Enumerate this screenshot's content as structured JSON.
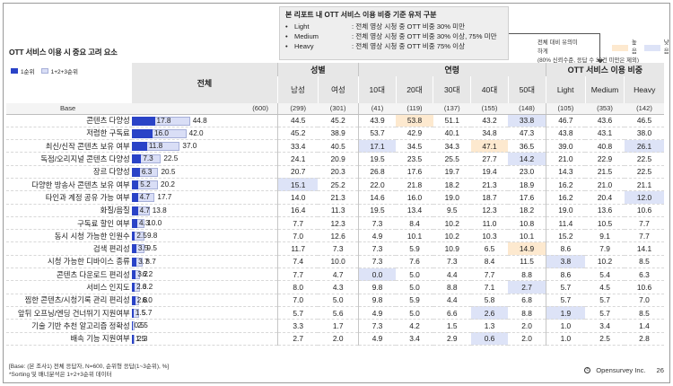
{
  "legend": {
    "title": "본 리포트 내 OTT 서비스 이용 비중 기준 유저 구분",
    "rows": [
      {
        "name": "Light",
        "desc": ": 전체 영상 시청 중 OTT 비중 30% 미만"
      },
      {
        "name": "Medium",
        "desc": ": 전체 영상 시청 중 OTT 비중 30% 이상, 75% 미만"
      },
      {
        "name": "Heavy",
        "desc": ": 전체 영상 시청 중 OTT 비중 75% 이상"
      }
    ]
  },
  "report_title": "OTT 서비스 이용 시 중요 고려 요소",
  "sig_legend": {
    "label": "전체 대비 유의미하게",
    "high": "높음",
    "low": "낮음",
    "note": "(80% 신뢰수준, 응답 수 30건 미만은 제외)"
  },
  "bar_legend": {
    "rank1": "1순위",
    "rank123": "1+2+3순위"
  },
  "table": {
    "total_header": "전체",
    "groups": [
      "성별",
      "연령",
      "OTT 서비스 이용 비중"
    ],
    "columns": [
      "남성",
      "여성",
      "10대",
      "20대",
      "30대",
      "40대",
      "50대",
      "Light",
      "Medium",
      "Heavy"
    ],
    "base_label": "Base",
    "base_total": "(600)",
    "base_values": [
      "(299)",
      "(301)",
      "(41)",
      "(119)",
      "(137)",
      "(155)",
      "(148)",
      "(105)",
      "(353)",
      "(142)"
    ],
    "rows": [
      {
        "label": "콘텐츠 다양성",
        "rank1": 17.8,
        "rank123": 44.8,
        "rank1_text": "17.8",
        "rank123_text": "44.8",
        "values": [
          "44.5",
          "45.2",
          "43.9",
          "53.8",
          "51.1",
          "43.2",
          "33.8",
          "46.7",
          "43.6",
          "46.5"
        ],
        "sig": [
          "",
          "",
          "",
          "h",
          "",
          "",
          "l",
          "",
          "",
          ""
        ]
      },
      {
        "label": "저렴한 구독료",
        "rank1": 16.0,
        "rank123": 42.0,
        "rank1_text": "16.0",
        "rank123_text": "42.0",
        "values": [
          "45.2",
          "38.9",
          "53.7",
          "42.9",
          "40.1",
          "34.8",
          "47.3",
          "43.8",
          "43.1",
          "38.0"
        ],
        "sig": [
          "",
          "",
          "",
          "",
          "",
          "",
          "",
          "",
          "",
          ""
        ]
      },
      {
        "label": "최신/신작 콘텐츠 보유 여부",
        "rank1": 11.8,
        "rank123": 37.0,
        "rank1_text": "11.8",
        "rank123_text": "37.0",
        "values": [
          "33.4",
          "40.5",
          "17.1",
          "34.5",
          "34.3",
          "47.1",
          "36.5",
          "39.0",
          "40.8",
          "26.1"
        ],
        "sig": [
          "",
          "",
          "l",
          "",
          "",
          "h",
          "",
          "",
          "",
          "l"
        ]
      },
      {
        "label": "독점/오리지널 콘텐츠 다양성",
        "rank1": 7.3,
        "rank123": 22.5,
        "rank1_text": "7.3",
        "rank123_text": "22.5",
        "values": [
          "24.1",
          "20.9",
          "19.5",
          "23.5",
          "25.5",
          "27.7",
          "14.2",
          "21.0",
          "22.9",
          "22.5"
        ],
        "sig": [
          "",
          "",
          "",
          "",
          "",
          "",
          "l",
          "",
          "",
          ""
        ]
      },
      {
        "label": "장르 다양성",
        "rank1": 6.3,
        "rank123": 20.5,
        "rank1_text": "6.3",
        "rank123_text": "20.5",
        "values": [
          "20.7",
          "20.3",
          "26.8",
          "17.6",
          "19.7",
          "19.4",
          "23.0",
          "14.3",
          "21.5",
          "22.5"
        ],
        "sig": [
          "",
          "",
          "",
          "",
          "",
          "",
          "",
          "",
          "",
          ""
        ]
      },
      {
        "label": "다양한 방송사 콘텐츠 보유 여부",
        "rank1": 5.2,
        "rank123": 20.2,
        "rank1_text": "5.2",
        "rank123_text": "20.2",
        "values": [
          "15.1",
          "25.2",
          "22.0",
          "21.8",
          "18.2",
          "21.3",
          "18.9",
          "16.2",
          "21.0",
          "21.1"
        ],
        "sig": [
          "l",
          "",
          "",
          "",
          "",
          "",
          "",
          "",
          "",
          ""
        ]
      },
      {
        "label": "타인과 계정 공유 가능 여부",
        "rank1": 4.7,
        "rank123": 17.7,
        "rank1_text": "4.7",
        "rank123_text": "17.7",
        "values": [
          "14.0",
          "21.3",
          "14.6",
          "16.0",
          "19.0",
          "18.7",
          "17.6",
          "16.2",
          "20.4",
          "12.0"
        ],
        "sig": [
          "",
          "",
          "",
          "",
          "",
          "",
          "",
          "",
          "",
          "l"
        ]
      },
      {
        "label": "화질/음질",
        "rank1": 4.7,
        "rank123": 13.8,
        "rank1_text": "4.7",
        "rank123_text": "13.8",
        "values": [
          "16.4",
          "11.3",
          "19.5",
          "13.4",
          "9.5",
          "12.3",
          "18.2",
          "19.0",
          "13.6",
          "10.6"
        ],
        "sig": [
          "",
          "",
          "",
          "",
          "",
          "",
          "",
          "",
          "",
          ""
        ]
      },
      {
        "label": "구독료 할인 여부",
        "rank1": 4.3,
        "rank123": 10.0,
        "rank1_text": "4.3",
        "rank123_text": "10.0",
        "values": [
          "7.7",
          "12.3",
          "7.3",
          "8.4",
          "10.2",
          "11.0",
          "10.8",
          "11.4",
          "10.5",
          "7.7"
        ],
        "sig": [
          "",
          "",
          "",
          "",
          "",
          "",
          "",
          "",
          "",
          ""
        ]
      },
      {
        "label": "동시 시청 가능한 인원수",
        "rank1": 2.5,
        "rank123": 9.8,
        "rank1_text": "2.5",
        "rank123_text": "9.8",
        "values": [
          "7.0",
          "12.6",
          "4.9",
          "10.1",
          "10.2",
          "10.3",
          "10.1",
          "15.2",
          "9.1",
          "7.7"
        ],
        "sig": [
          "",
          "",
          "",
          "",
          "",
          "",
          "",
          "",
          "",
          ""
        ]
      },
      {
        "label": "검색 편리성",
        "rank1": 3.5,
        "rank123": 9.5,
        "rank1_text": "3.5",
        "rank123_text": "9.5",
        "values": [
          "11.7",
          "7.3",
          "7.3",
          "5.9",
          "10.9",
          "6.5",
          "14.9",
          "8.6",
          "7.9",
          "14.1"
        ],
        "sig": [
          "",
          "",
          "",
          "",
          "",
          "",
          "h",
          "",
          "",
          ""
        ]
      },
      {
        "label": "시청 가능한 디바이스 종류",
        "rank1": 3.7,
        "rank123": 8.7,
        "rank1_text": "3.7",
        "rank123_text": "8.7",
        "values": [
          "7.4",
          "10.0",
          "7.3",
          "7.6",
          "7.3",
          "8.4",
          "11.5",
          "3.8",
          "10.2",
          "8.5"
        ],
        "sig": [
          "",
          "",
          "",
          "",
          "",
          "",
          "",
          "l",
          "",
          ""
        ]
      },
      {
        "label": "콘텐츠 다운로드 편리성",
        "rank1": 3.2,
        "rank123": 6.2,
        "rank1_text": "3.2",
        "rank123_text": "6.2",
        "values": [
          "7.7",
          "4.7",
          "0.0",
          "5.0",
          "4.4",
          "7.7",
          "8.8",
          "8.6",
          "5.4",
          "6.3"
        ],
        "sig": [
          "",
          "",
          "l",
          "",
          "",
          "",
          "",
          "",
          "",
          ""
        ]
      },
      {
        "label": "서비스 인지도",
        "rank1": 2.3,
        "rank123": 6.2,
        "rank1_text": "2.3",
        "rank123_text": "6.2",
        "values": [
          "8.0",
          "4.3",
          "9.8",
          "5.0",
          "8.8",
          "7.1",
          "2.7",
          "5.7",
          "4.5",
          "10.6"
        ],
        "sig": [
          "",
          "",
          "",
          "",
          "",
          "",
          "l",
          "",
          "",
          ""
        ]
      },
      {
        "label": "찜한 콘텐츠/시청기록 관리 편리성",
        "rank1": 2.8,
        "rank123": 6.0,
        "rank1_text": "2.8",
        "rank123_text": "6.0",
        "values": [
          "7.0",
          "5.0",
          "9.8",
          "5.9",
          "4.4",
          "5.8",
          "6.8",
          "5.7",
          "5.7",
          "7.0"
        ],
        "sig": [
          "",
          "",
          "",
          "",
          "",
          "",
          "",
          "",
          "",
          ""
        ]
      },
      {
        "label": "앞뒤 오프닝/엔딩 건너뛰기 지원여부",
        "rank1": 1.5,
        "rank123": 5.7,
        "rank1_text": "1.5",
        "rank123_text": "5.7",
        "values": [
          "5.7",
          "5.6",
          "4.9",
          "5.0",
          "6.6",
          "2.6",
          "8.8",
          "1.9",
          "5.7",
          "8.5"
        ],
        "sig": [
          "",
          "",
          "",
          "",
          "",
          "l",
          "",
          "l",
          "",
          ""
        ]
      },
      {
        "label": "기술 기반 추천 알고리즘 정확성",
        "rank1": 0.5,
        "rank123": 2.5,
        "rank1_text": "0.5",
        "rank123_text": "2.5",
        "values": [
          "3.3",
          "1.7",
          "7.3",
          "4.2",
          "1.5",
          "1.3",
          "2.0",
          "1.0",
          "3.4",
          "1.4"
        ],
        "sig": [
          "",
          "",
          "",
          "",
          "",
          "",
          "",
          "",
          "",
          ""
        ]
      },
      {
        "label": "배속 기능 지원여부",
        "rank1": 1.5,
        "rank123": 2.3,
        "rank1_text": "1.5",
        "rank123_text": "2.3",
        "values": [
          "2.7",
          "2.0",
          "4.9",
          "3.4",
          "2.9",
          "0.6",
          "2.0",
          "1.0",
          "2.5",
          "2.8"
        ],
        "sig": [
          "",
          "",
          "",
          "",
          "",
          "l",
          "",
          "",
          "",
          ""
        ]
      }
    ]
  },
  "footer": {
    "note1": "[Base: (본 조사1) 전체 응답자, N=600, 순위형 응답(1~3순위), %]",
    "note2": "*Sorting 및 배너분석은 1+2+3순위 데이터",
    "brand": "Opensurvey Inc.",
    "page": "26"
  }
}
